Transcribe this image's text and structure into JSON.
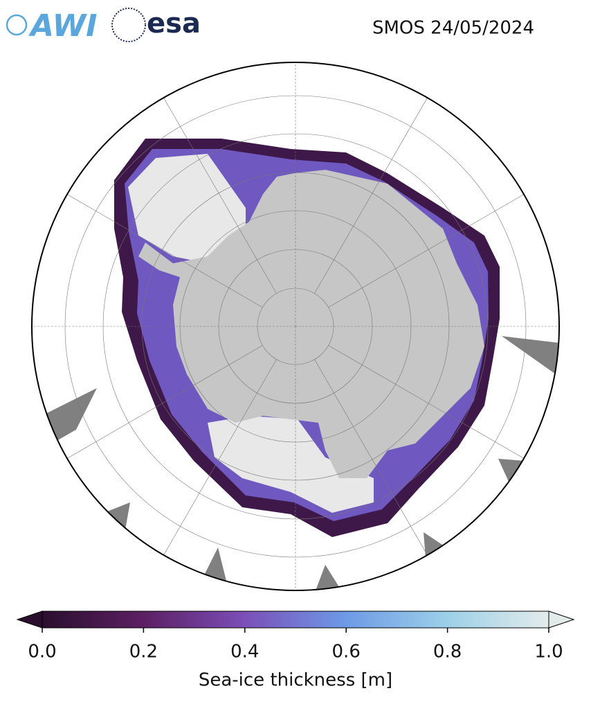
{
  "header": {
    "logos": [
      "AWI",
      "esa"
    ],
    "title": "SMOS 24/05/2024"
  },
  "colorbar": {
    "label": "Sea-ice thickness [m]",
    "lim": [
      0,
      1
    ],
    "ticks": [
      {
        "value": 0,
        "label": "0.0"
      },
      {
        "value": 0.2,
        "label": "0.2"
      },
      {
        "value": 0.4,
        "label": "0.4"
      },
      {
        "value": 0.6,
        "label": "0.6"
      },
      {
        "value": 0.8,
        "label": "0.8"
      },
      {
        "value": 1,
        "label": "1.0"
      }
    ],
    "colors": [
      "#2a0f2e",
      "#5c1f63",
      "#7b4fb8",
      "#6d9ae6",
      "#9cd0e8",
      "#e3ebea"
    ]
  }
}
